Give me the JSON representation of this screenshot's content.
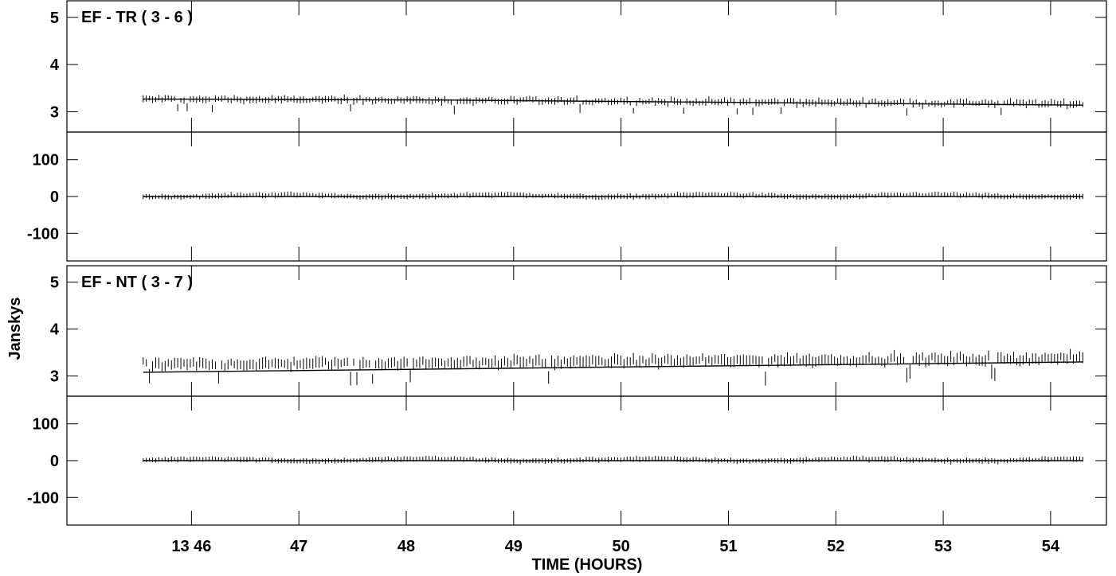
{
  "chart_data": {
    "type": "scatter",
    "description_style": "stacked AIPS VPLOT panels, vertical error bars with model line",
    "xlabel": "TIME (HOURS)",
    "ylabel": "Janskys",
    "x_ticks": [
      {
        "value": 46,
        "label": "13 46"
      },
      {
        "value": 47,
        "label": "47"
      },
      {
        "value": 48,
        "label": "48"
      },
      {
        "value": 49,
        "label": "49"
      },
      {
        "value": 50,
        "label": "50"
      },
      {
        "value": 51,
        "label": "51"
      },
      {
        "value": 52,
        "label": "52"
      },
      {
        "value": 53,
        "label": "53"
      },
      {
        "value": 54,
        "label": "54"
      }
    ],
    "xlim": [
      44.84,
      54.52
    ],
    "data_x_range": [
      45.55,
      54.3
    ],
    "panels": [
      {
        "title": "EF - TR ( 3 - 6 )",
        "quantity": "amplitude",
        "ylim": [
          2.57,
          5.35
        ],
        "yticks": [
          {
            "value": 3,
            "label": "3"
          },
          {
            "value": 4,
            "label": "4"
          },
          {
            "value": 5,
            "label": "5"
          }
        ],
        "model": {
          "x": [
            45.55,
            48.2,
            54.3
          ],
          "y": [
            3.27,
            3.25,
            3.14
          ]
        },
        "data": {
          "center_start": 3.27,
          "center_end": 3.17,
          "scatter": 0.06,
          "error_bar": 0.12
        }
      },
      {
        "title": "",
        "quantity": "phase",
        "ylim": [
          -175,
          175
        ],
        "yticks": [
          {
            "value": 100,
            "label": "100"
          },
          {
            "value": 0,
            "label": "0"
          },
          {
            "value": -100,
            "label": "-100"
          }
        ],
        "model": {
          "x": [
            45.55,
            54.3
          ],
          "y": [
            0,
            0
          ]
        },
        "data": {
          "center_start": 2,
          "center_end": 2,
          "scatter": 3,
          "error_bar": 12
        }
      },
      {
        "title": "EF - NT ( 3 - 7 )",
        "quantity": "amplitude",
        "ylim": [
          2.57,
          5.35
        ],
        "yticks": [
          {
            "value": 3,
            "label": "3"
          },
          {
            "value": 4,
            "label": "4"
          },
          {
            "value": 5,
            "label": "5"
          }
        ],
        "model": {
          "x": [
            45.55,
            54.3
          ],
          "y": [
            3.08,
            3.3
          ]
        },
        "data": {
          "center_start": 3.24,
          "center_end": 3.38,
          "scatter": 0.08,
          "error_bar": 0.2
        }
      },
      {
        "title": "",
        "quantity": "phase",
        "ylim": [
          -175,
          175
        ],
        "yticks": [
          {
            "value": 100,
            "label": "100"
          },
          {
            "value": 0,
            "label": "0"
          },
          {
            "value": -100,
            "label": "-100"
          }
        ],
        "model": {
          "x": [
            45.55,
            54.3
          ],
          "y": [
            0,
            0
          ]
        },
        "data": {
          "center_start": 2,
          "center_end": 2,
          "scatter": 3,
          "error_bar": 12
        }
      }
    ],
    "grid": false,
    "legend": "none"
  }
}
